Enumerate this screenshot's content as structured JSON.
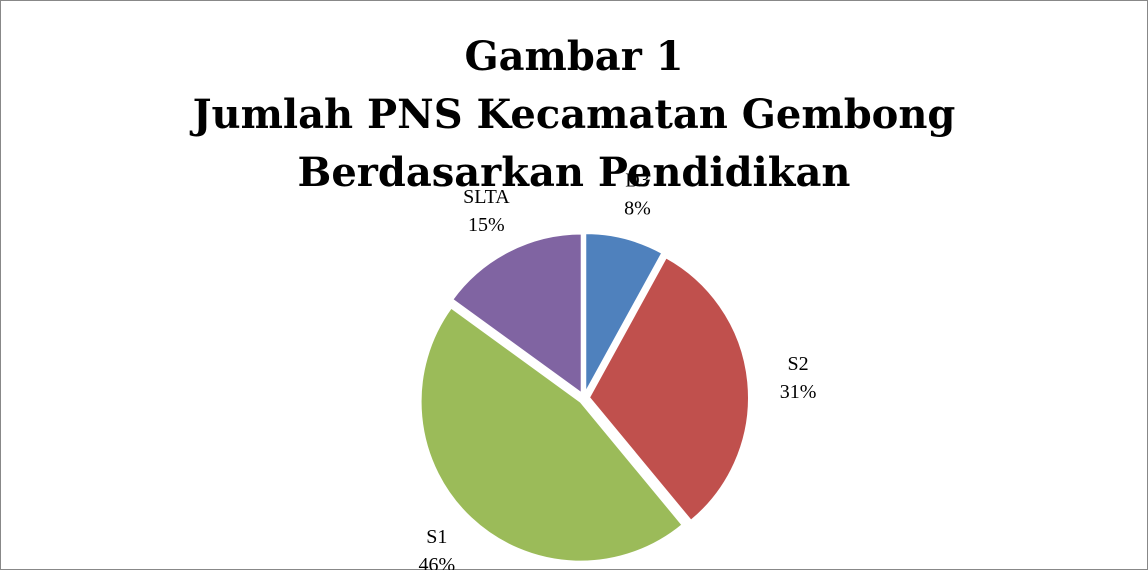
{
  "chart_data": {
    "type": "pie",
    "title": [
      "Gambar 1",
      "Jumlah PNS Kecamatan Gembong",
      "Berdasarkan Pendidikan"
    ],
    "categories": [
      "D3",
      "S2",
      "S1",
      "SLTA"
    ],
    "values": [
      8,
      31,
      46,
      15
    ],
    "value_labels": [
      "8%",
      "31%",
      "46%",
      "15%"
    ],
    "colors": [
      "#4f81bd",
      "#c0504d",
      "#9bbb59",
      "#8064a2"
    ]
  }
}
